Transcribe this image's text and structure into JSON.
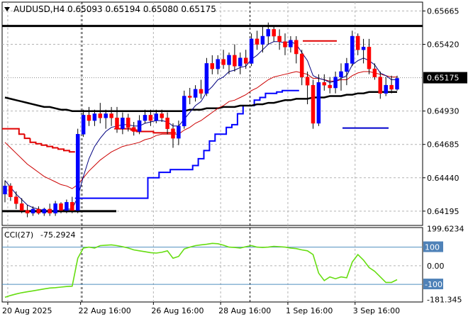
{
  "chart_data": [
    {
      "type": "candlestick",
      "header": {
        "symbol": "AUDUSD,H4",
        "ohlc": "0.65093 0.65194 0.65080 0.65175"
      },
      "y_axis": {
        "ticks": [
          "0.65665",
          "0.65420",
          "0.64930",
          "0.64685",
          "0.64440",
          "0.64195"
        ],
        "tick_values": [
          0.65665,
          0.6542,
          0.6493,
          0.64685,
          0.6444,
          0.64195
        ],
        "current_price_label": "0.65175",
        "current_price": 0.65175,
        "range": [
          0.6409,
          0.6573
        ]
      },
      "x_axis": {
        "labels": [
          "20 Aug 2025",
          "22 Aug 16:00",
          "26 Aug 16:00",
          "28 Aug 16:00",
          "1 Sep 16:00",
          "3 Sep 16:00"
        ],
        "label_bar_index": [
          0,
          13,
          26,
          38,
          50,
          62
        ]
      },
      "candles": [
        [
          0.6432,
          0.6442,
          0.6426,
          0.6438
        ],
        [
          0.6438,
          0.644,
          0.6427,
          0.643
        ],
        [
          0.643,
          0.6434,
          0.6421,
          0.6425
        ],
        [
          0.6425,
          0.6429,
          0.6418,
          0.642
        ],
        [
          0.642,
          0.6424,
          0.6415,
          0.6418
        ],
        [
          0.6418,
          0.6423,
          0.6416,
          0.6421
        ],
        [
          0.6421,
          0.6423,
          0.6417,
          0.6418
        ],
        [
          0.6418,
          0.6422,
          0.6416,
          0.6421
        ],
        [
          0.6421,
          0.6425,
          0.6416,
          0.6418
        ],
        [
          0.6418,
          0.6427,
          0.6416,
          0.6425
        ],
        [
          0.6425,
          0.6426,
          0.6418,
          0.642
        ],
        [
          0.642,
          0.6428,
          0.6418,
          0.6426
        ],
        [
          0.6426,
          0.643,
          0.6418,
          0.642
        ],
        [
          0.642,
          0.648,
          0.6418,
          0.6476
        ],
        [
          0.6476,
          0.6494,
          0.6474,
          0.649
        ],
        [
          0.649,
          0.6496,
          0.6482,
          0.6486
        ],
        [
          0.6486,
          0.6494,
          0.6482,
          0.6491
        ],
        [
          0.6491,
          0.6499,
          0.6484,
          0.6488
        ],
        [
          0.6488,
          0.6494,
          0.648,
          0.6491
        ],
        [
          0.6491,
          0.6496,
          0.6482,
          0.6488
        ],
        [
          0.6488,
          0.6496,
          0.6477,
          0.648
        ],
        [
          0.648,
          0.6492,
          0.6476,
          0.6488
        ],
        [
          0.6488,
          0.6491,
          0.6478,
          0.6481
        ],
        [
          0.6481,
          0.6485,
          0.6475,
          0.6478
        ],
        [
          0.6478,
          0.649,
          0.6476,
          0.6486
        ],
        [
          0.6486,
          0.6494,
          0.6484,
          0.649
        ],
        [
          0.649,
          0.6494,
          0.6482,
          0.6486
        ],
        [
          0.6486,
          0.6494,
          0.6484,
          0.6491
        ],
        [
          0.6491,
          0.6494,
          0.6485,
          0.6488
        ],
        [
          0.6488,
          0.6492,
          0.6476,
          0.648
        ],
        [
          0.648,
          0.6484,
          0.6466,
          0.6473
        ],
        [
          0.6473,
          0.6486,
          0.6468,
          0.6482
        ],
        [
          0.6482,
          0.6508,
          0.648,
          0.6504
        ],
        [
          0.6504,
          0.651,
          0.6498,
          0.6503
        ],
        [
          0.6503,
          0.6512,
          0.65,
          0.6509
        ],
        [
          0.6509,
          0.6516,
          0.6502,
          0.6506
        ],
        [
          0.6506,
          0.6532,
          0.6504,
          0.6528
        ],
        [
          0.6528,
          0.6534,
          0.652,
          0.6524
        ],
        [
          0.6524,
          0.6534,
          0.652,
          0.6531
        ],
        [
          0.6531,
          0.6538,
          0.6524,
          0.6527
        ],
        [
          0.6527,
          0.6536,
          0.652,
          0.6534
        ],
        [
          0.6534,
          0.6542,
          0.6522,
          0.6526
        ],
        [
          0.6526,
          0.6536,
          0.652,
          0.6532
        ],
        [
          0.6532,
          0.6538,
          0.6524,
          0.6528
        ],
        [
          0.6528,
          0.655,
          0.6526,
          0.6546
        ],
        [
          0.6546,
          0.6552,
          0.6538,
          0.6542
        ],
        [
          0.6542,
          0.6555,
          0.6536,
          0.6548
        ],
        [
          0.6548,
          0.6558,
          0.6542,
          0.6553
        ],
        [
          0.6553,
          0.6556,
          0.6544,
          0.6548
        ],
        [
          0.6548,
          0.6553,
          0.6538,
          0.6544
        ],
        [
          0.6544,
          0.655,
          0.6534,
          0.654
        ],
        [
          0.654,
          0.6548,
          0.6536,
          0.6545
        ],
        [
          0.6545,
          0.6548,
          0.6528,
          0.6535
        ],
        [
          0.6535,
          0.6538,
          0.6512,
          0.6518
        ],
        [
          0.6518,
          0.6522,
          0.6498,
          0.6512
        ],
        [
          0.6512,
          0.6516,
          0.648,
          0.6484
        ],
        [
          0.6484,
          0.652,
          0.6482,
          0.6514
        ],
        [
          0.6514,
          0.652,
          0.6508,
          0.6512
        ],
        [
          0.6512,
          0.6518,
          0.6506,
          0.651
        ],
        [
          0.651,
          0.6522,
          0.6506,
          0.6518
        ],
        [
          0.6518,
          0.6528,
          0.6508,
          0.6522
        ],
        [
          0.6522,
          0.6532,
          0.6512,
          0.6528
        ],
        [
          0.6528,
          0.6552,
          0.6526,
          0.6548
        ],
        [
          0.6548,
          0.655,
          0.6534,
          0.6538
        ],
        [
          0.6538,
          0.6546,
          0.6528,
          0.654
        ],
        [
          0.654,
          0.6546,
          0.652,
          0.6524
        ],
        [
          0.6524,
          0.6528,
          0.6516,
          0.6518
        ],
        [
          0.6518,
          0.6522,
          0.6502,
          0.6506
        ],
        [
          0.6506,
          0.6518,
          0.6504,
          0.6512
        ],
        [
          0.6512,
          0.6519,
          0.6506,
          0.6509
        ],
        [
          0.6509,
          0.6519,
          0.6508,
          0.6517
        ]
      ],
      "horizontal_lines": [
        {
          "color": "#000000",
          "value": 0.65555
        },
        {
          "color": "#000000",
          "value": 0.64195
        },
        {
          "color": "#e00000",
          "value": 0.65445
        },
        {
          "color": "#0000cc",
          "value": 0.64805
        }
      ],
      "ma_fast": [
        0.6442,
        0.6437,
        0.6432,
        0.6428,
        0.6424,
        0.6422,
        0.6421,
        0.642,
        0.6419,
        0.642,
        0.642,
        0.6421,
        0.6421,
        0.643,
        0.6445,
        0.6458,
        0.6467,
        0.6473,
        0.6478,
        0.6481,
        0.6482,
        0.6483,
        0.6483,
        0.6482,
        0.6482,
        0.6484,
        0.6485,
        0.6486,
        0.6486,
        0.6485,
        0.6482,
        0.6482,
        0.6487,
        0.6492,
        0.6497,
        0.65,
        0.6507,
        0.6511,
        0.6516,
        0.6518,
        0.6522,
        0.6523,
        0.6525,
        0.6526,
        0.6531,
        0.6534,
        0.6538,
        0.6542,
        0.6544,
        0.6544,
        0.6543,
        0.6544,
        0.6542,
        0.6536,
        0.653,
        0.6519,
        0.6517,
        0.6516,
        0.6514,
        0.6515,
        0.6517,
        0.6519,
        0.6527,
        0.653,
        0.6532,
        0.653,
        0.6527,
        0.6521,
        0.6519,
        0.6516,
        0.6516
      ],
      "ma_slow": [
        0.647,
        0.6466,
        0.6462,
        0.6458,
        0.6454,
        0.6451,
        0.6448,
        0.6445,
        0.6443,
        0.6441,
        0.6439,
        0.6438,
        0.6436,
        0.6439,
        0.6444,
        0.6449,
        0.6453,
        0.6457,
        0.646,
        0.6463,
        0.6465,
        0.6467,
        0.6468,
        0.6469,
        0.647,
        0.6472,
        0.6473,
        0.6475,
        0.6476,
        0.6476,
        0.6476,
        0.6476,
        0.6479,
        0.6481,
        0.6484,
        0.6486,
        0.6489,
        0.6492,
        0.6495,
        0.6497,
        0.65,
        0.6501,
        0.6503,
        0.6505,
        0.6508,
        0.651,
        0.6513,
        0.6516,
        0.6518,
        0.6519,
        0.652,
        0.6521,
        0.6522,
        0.6521,
        0.652,
        0.6517,
        0.6517,
        0.6516,
        0.6515,
        0.6515,
        0.6516,
        0.6516,
        0.6519,
        0.6521,
        0.6522,
        0.6522,
        0.6521,
        0.652,
        0.6519,
        0.6518,
        0.6518
      ],
      "ma_long": [
        0.6503,
        0.6502,
        0.6501,
        0.65,
        0.6499,
        0.6498,
        0.6497,
        0.6496,
        0.6496,
        0.6495,
        0.6494,
        0.6494,
        0.6493,
        0.6493,
        0.6493,
        0.6493,
        0.6493,
        0.6493,
        0.6493,
        0.6493,
        0.6493,
        0.6493,
        0.6493,
        0.6493,
        0.6493,
        0.6493,
        0.6493,
        0.6493,
        0.6493,
        0.6493,
        0.6493,
        0.6493,
        0.6493,
        0.6494,
        0.6494,
        0.6494,
        0.6495,
        0.6495,
        0.6495,
        0.6496,
        0.6496,
        0.6496,
        0.6497,
        0.6497,
        0.6497,
        0.6498,
        0.6498,
        0.6499,
        0.6499,
        0.65,
        0.6501,
        0.6501,
        0.6502,
        0.6502,
        0.6502,
        0.6503,
        0.6503,
        0.6503,
        0.6504,
        0.6504,
        0.6504,
        0.6505,
        0.6505,
        0.6506,
        0.6506,
        0.6507,
        0.6507,
        0.6507,
        0.6507,
        0.6507,
        0.6507
      ],
      "red_stop": [
        [
          0,
          0.648
        ],
        [
          1,
          0.648
        ],
        [
          2,
          0.648
        ],
        [
          3,
          0.6476
        ],
        [
          4,
          0.6473
        ],
        [
          5,
          0.647
        ],
        [
          6,
          0.6469
        ],
        [
          7,
          0.6468
        ],
        [
          8,
          0.6467
        ],
        [
          9,
          0.6466
        ],
        [
          10,
          0.6465
        ],
        [
          11,
          0.6464
        ],
        [
          12,
          0.6463
        ],
        [
          20,
          0.648
        ],
        [
          21,
          0.648
        ],
        [
          22,
          0.648
        ],
        [
          23,
          0.6479
        ],
        [
          24,
          0.6478
        ],
        [
          25,
          0.6478
        ],
        [
          26,
          0.6478
        ],
        [
          27,
          0.6477
        ],
        [
          28,
          0.6477
        ],
        [
          29,
          0.6477
        ],
        [
          30,
          0.6477
        ]
      ],
      "blue_stop": [
        [
          13,
          0.6429
        ],
        [
          14,
          0.6429
        ],
        [
          15,
          0.6429
        ],
        [
          16,
          0.6429
        ],
        [
          17,
          0.6429
        ],
        [
          18,
          0.6429
        ],
        [
          19,
          0.6429
        ],
        [
          20,
          0.6429
        ],
        [
          21,
          0.6429
        ],
        [
          22,
          0.6429
        ],
        [
          23,
          0.6429
        ],
        [
          24,
          0.6429
        ],
        [
          25,
          0.6429
        ],
        [
          26,
          0.6444
        ],
        [
          27,
          0.6444
        ],
        [
          28,
          0.6448
        ],
        [
          29,
          0.6448
        ],
        [
          30,
          0.645
        ],
        [
          31,
          0.645
        ],
        [
          32,
          0.645
        ],
        [
          33,
          0.645
        ],
        [
          34,
          0.6453
        ],
        [
          35,
          0.6458
        ],
        [
          36,
          0.6464
        ],
        [
          37,
          0.6471
        ],
        [
          38,
          0.6476
        ],
        [
          39,
          0.6476
        ],
        [
          40,
          0.6481
        ],
        [
          41,
          0.6483
        ],
        [
          42,
          0.6491
        ],
        [
          43,
          0.6497
        ],
        [
          44,
          0.6497
        ],
        [
          45,
          0.6501
        ],
        [
          46,
          0.6503
        ],
        [
          47,
          0.6506
        ],
        [
          48,
          0.6506
        ],
        [
          49,
          0.6507
        ],
        [
          50,
          0.6508
        ],
        [
          51,
          0.6508
        ],
        [
          52,
          0.6508
        ]
      ]
    },
    {
      "type": "line",
      "header": {
        "label": "CCI(27)",
        "value": "-75.2924"
      },
      "levels": [
        {
          "label": "199.6234",
          "value": 199.62
        },
        {
          "label": "100",
          "value": 100,
          "style": "box"
        },
        {
          "label": "0.00",
          "value": 0
        },
        {
          "label": "-100",
          "value": -100,
          "style": "box"
        },
        {
          "label": "-181.345",
          "value": -181.35
        }
      ],
      "range": [
        -195,
        205
      ],
      "values": [
        -170,
        -160,
        -152,
        -145,
        -140,
        -135,
        -130,
        -125,
        -120,
        -118,
        -115,
        -112,
        -110,
        40,
        95,
        100,
        95,
        108,
        110,
        112,
        108,
        102,
        95,
        85,
        80,
        75,
        70,
        68,
        72,
        80,
        40,
        50,
        90,
        100,
        108,
        112,
        115,
        120,
        118,
        110,
        100,
        98,
        95,
        102,
        108,
        100,
        98,
        100,
        104,
        102,
        100,
        95,
        92,
        85,
        80,
        60,
        -40,
        -80,
        -60,
        -70,
        -60,
        -65,
        20,
        60,
        30,
        -10,
        -30,
        -60,
        -90,
        -90,
        -75
      ]
    }
  ]
}
